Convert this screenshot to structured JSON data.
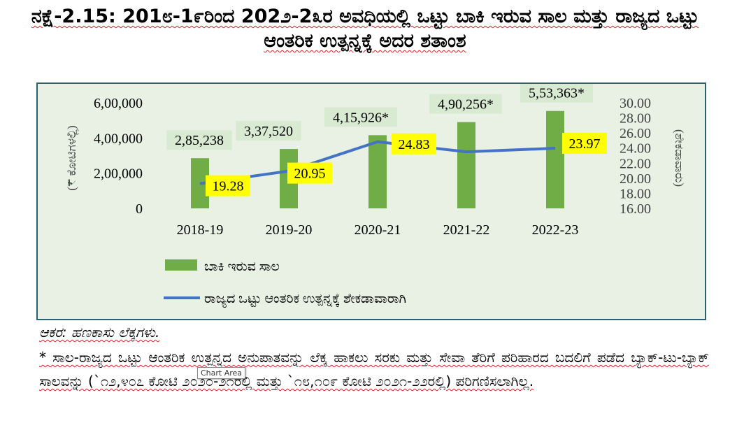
{
  "header": {
    "title": "ನಕ್ಷೆ-2.15: 201೮-1೯ರಿಂದ 202೨-2೩ರ ಅವಧಿಯಲ್ಲಿ ಒಟ್ಟು ಬಾಕಿ ಇರುವ ಸಾಲ ಮತ್ತು ರಾಜ್ಯದ ಒಟ್ಟು ಆಂತರಿಕ ಉತ್ಪನ್ನಕ್ಕೆ ಅದರ ಶತಾಂಶ"
  },
  "chart_data": {
    "type": "bar",
    "categories": [
      "2018-19",
      "2019-20",
      "2020-21",
      "2021-22",
      "2022-23"
    ],
    "series": [
      {
        "name": "ಬಾಕಿ ಇರುವ ಸಾಲ",
        "type": "bar",
        "axis": "left",
        "values": [
          285238,
          337520,
          415926,
          490256,
          553363
        ],
        "labels": [
          "2,85,238",
          "3,37,520",
          "4,15,926*",
          "4,90,256*",
          "5,53,363*"
        ],
        "color": "#70ad47"
      },
      {
        "name": "ರಾಜ್ಯದ ಒಟ್ಟು ಆಂತರಿಕ ಉತ್ಪನ್ನಕ್ಕೆ ಶೇಕಡಾವಾರಾಗಿ",
        "type": "line",
        "axis": "right",
        "values": [
          19.28,
          20.95,
          24.83,
          23.5,
          23.97
        ],
        "labels": [
          "19.28",
          "20.95",
          "24.83",
          "",
          "23.97"
        ],
        "color": "#4472c4"
      }
    ],
    "ylabel": "(₹ ಕೋಟಿಗಳಲ್ಲಿ)",
    "y2label": "(ಶೇಕಡಾವಾರು)",
    "ylim": [
      0,
      600000
    ],
    "y2lim": [
      16,
      30
    ],
    "yticks": [
      "0",
      "2,00,000",
      "4,00,000",
      "6,00,000"
    ],
    "y2ticks": [
      "16.00",
      "18.00",
      "20.00",
      "22.00",
      "24.00",
      "26.00",
      "28.00",
      "30.00"
    ],
    "grid": false,
    "legend": "bottom"
  },
  "tooltip": "Chart Area",
  "footer": {
    "source": "ಆಕರ: ಹಣಕಾಸು ಲೆಕ್ಕಗಳು.",
    "note": "* ಸಾಲ-ರಾಜ್ಯದ ಒಟ್ಟು ಆಂತರಿಕ ಉತ್ಪನ್ನದ ಅನುಪಾತವನ್ನು ಲೆಕ್ಕ ಹಾಕಲು ಸರಕು ಮತ್ತು ಸೇವಾ ತೆರಿಗೆ ಪರಿಹಾರದ ಬದಲಿಗೆ ಪಡೆದ ಬ್ಯಾಕ್-ಟು-ಬ್ಯಾಕ್ ಸಾಲವನ್ನು (`೧೨,೪೦೭ ಕೋಟಿ ೨೦೨೦-೨೧ರಲ್ಲಿ ಮತ್ತು `೧೮,೧೦೯ ಕೋಟಿ ೨೦೨೧-೨೨ರಲ್ಲಿ) ಪರಿಗಣಿಸಲಾಗಿಲ್ಲ."
  }
}
